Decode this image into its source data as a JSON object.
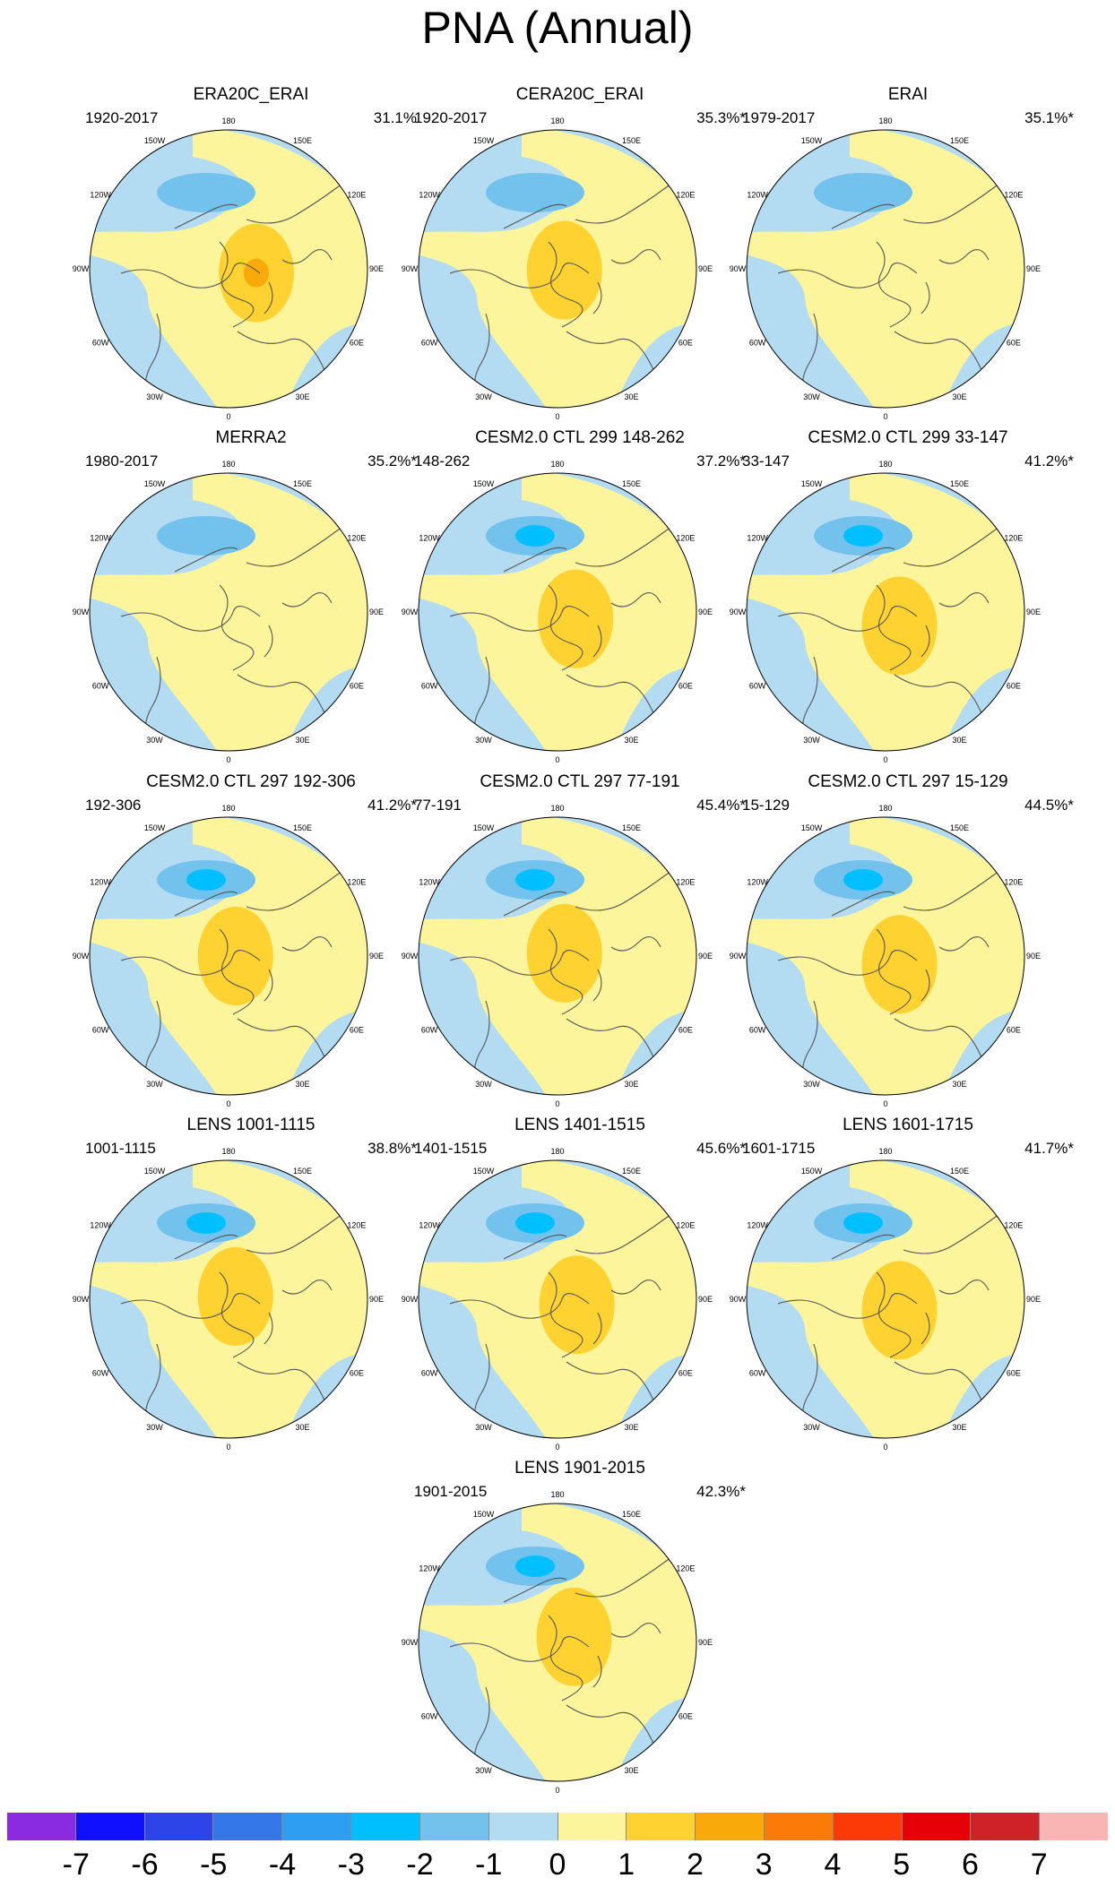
{
  "title": "PNA (Annual)",
  "colors": {
    "neg1": "#b3dcf2",
    "neg2": "#73c2ee",
    "neg3": "#00bfff",
    "pos1": "#fdf59b",
    "pos2": "#fdd231",
    "pos3": "#f9a90a",
    "coast": "#555555",
    "ring": "#000000"
  },
  "longitude_labels": [
    "180",
    "150E",
    "120E",
    "90E",
    "60E",
    "30E",
    "0",
    "30W",
    "60W",
    "90W",
    "120W",
    "150W"
  ],
  "panels": [
    {
      "id": "era20c-erai",
      "title": "ERA20C_ERAI",
      "period": "1920-2017",
      "variance": "31.1%",
      "low_level": 2,
      "high_level": 3,
      "high_x": 0.2,
      "high_y": 0.03
    },
    {
      "id": "cera20c-erai",
      "title": "CERA20C_ERAI",
      "period": "1920-2017",
      "variance": "35.3%*",
      "low_level": 2,
      "high_level": 2,
      "high_x": 0.05,
      "high_y": 0.01
    },
    {
      "id": "erai",
      "title": "ERAI",
      "period": "1979-2017",
      "variance": "35.1%*",
      "low_level": 2,
      "high_level": 1,
      "high_x": 0.0,
      "high_y": 0.0
    },
    {
      "id": "merra2",
      "title": "MERRA2",
      "period": "1980-2017",
      "variance": "35.2%*",
      "low_level": 2,
      "high_level": 1,
      "high_x": 0.0,
      "high_y": 0.0
    },
    {
      "id": "cesm-299-148",
      "title": "CESM2.0 CTL 299 148-262",
      "period": "148-262",
      "variance": "37.2%*",
      "low_level": 3,
      "high_level": 2,
      "high_x": 0.13,
      "high_y": 0.05
    },
    {
      "id": "cesm-299-33",
      "title": "CESM2.0 CTL 299 33-147",
      "period": "33-147",
      "variance": "41.2%*",
      "low_level": 3,
      "high_level": 2,
      "high_x": 0.1,
      "high_y": 0.1
    },
    {
      "id": "cesm-297-192",
      "title": "CESM2.0 CTL 297 192-306",
      "period": "192-306",
      "variance": "41.2%*",
      "low_level": 3,
      "high_level": 2,
      "high_x": 0.05,
      "high_y": 0.0
    },
    {
      "id": "cesm-297-77",
      "title": "CESM2.0 CTL 297 77-191",
      "period": "77-191",
      "variance": "45.4%*",
      "low_level": 3,
      "high_level": 2,
      "high_x": 0.05,
      "high_y": -0.02
    },
    {
      "id": "cesm-297-15",
      "title": "CESM2.0 CTL 297 15-129",
      "period": "15-129",
      "variance": "44.5%*",
      "low_level": 3,
      "high_level": 2,
      "high_x": 0.1,
      "high_y": 0.06
    },
    {
      "id": "lens-1001",
      "title": "LENS 1001-1115",
      "period": "1001-1115",
      "variance": "38.8%*",
      "low_level": 3,
      "high_level": 2,
      "high_x": 0.05,
      "high_y": -0.02
    },
    {
      "id": "lens-1401",
      "title": "LENS 1401-1515",
      "period": "1401-1515",
      "variance": "45.6%*",
      "low_level": 3,
      "high_level": 2,
      "high_x": 0.14,
      "high_y": 0.04
    },
    {
      "id": "lens-1601",
      "title": "LENS 1601-1715",
      "period": "1601-1715",
      "variance": "41.7%*",
      "low_level": 3,
      "high_level": 2,
      "high_x": 0.1,
      "high_y": 0.08
    },
    {
      "id": "lens-1901",
      "title": "LENS 1901-2015",
      "period": "1901-2015",
      "variance": "42.3%*",
      "low_level": 3,
      "high_level": 2,
      "high_x": 0.12,
      "high_y": -0.04
    }
  ],
  "colorbar": {
    "colors": [
      "#8a2be2",
      "#1010ff",
      "#2d45e8",
      "#3478e8",
      "#2d9ef2",
      "#00bfff",
      "#73c2ee",
      "#b3dcf2",
      "#fdf59b",
      "#fdd231",
      "#f9a90a",
      "#fb7a08",
      "#fc3a08",
      "#e80008",
      "#cc2228",
      "#f9b4b4"
    ],
    "labels": [
      "-7",
      "-6",
      "-5",
      "-4",
      "-3",
      "-2",
      "-1",
      "0",
      "1",
      "2",
      "3",
      "4",
      "5",
      "6",
      "7"
    ]
  }
}
